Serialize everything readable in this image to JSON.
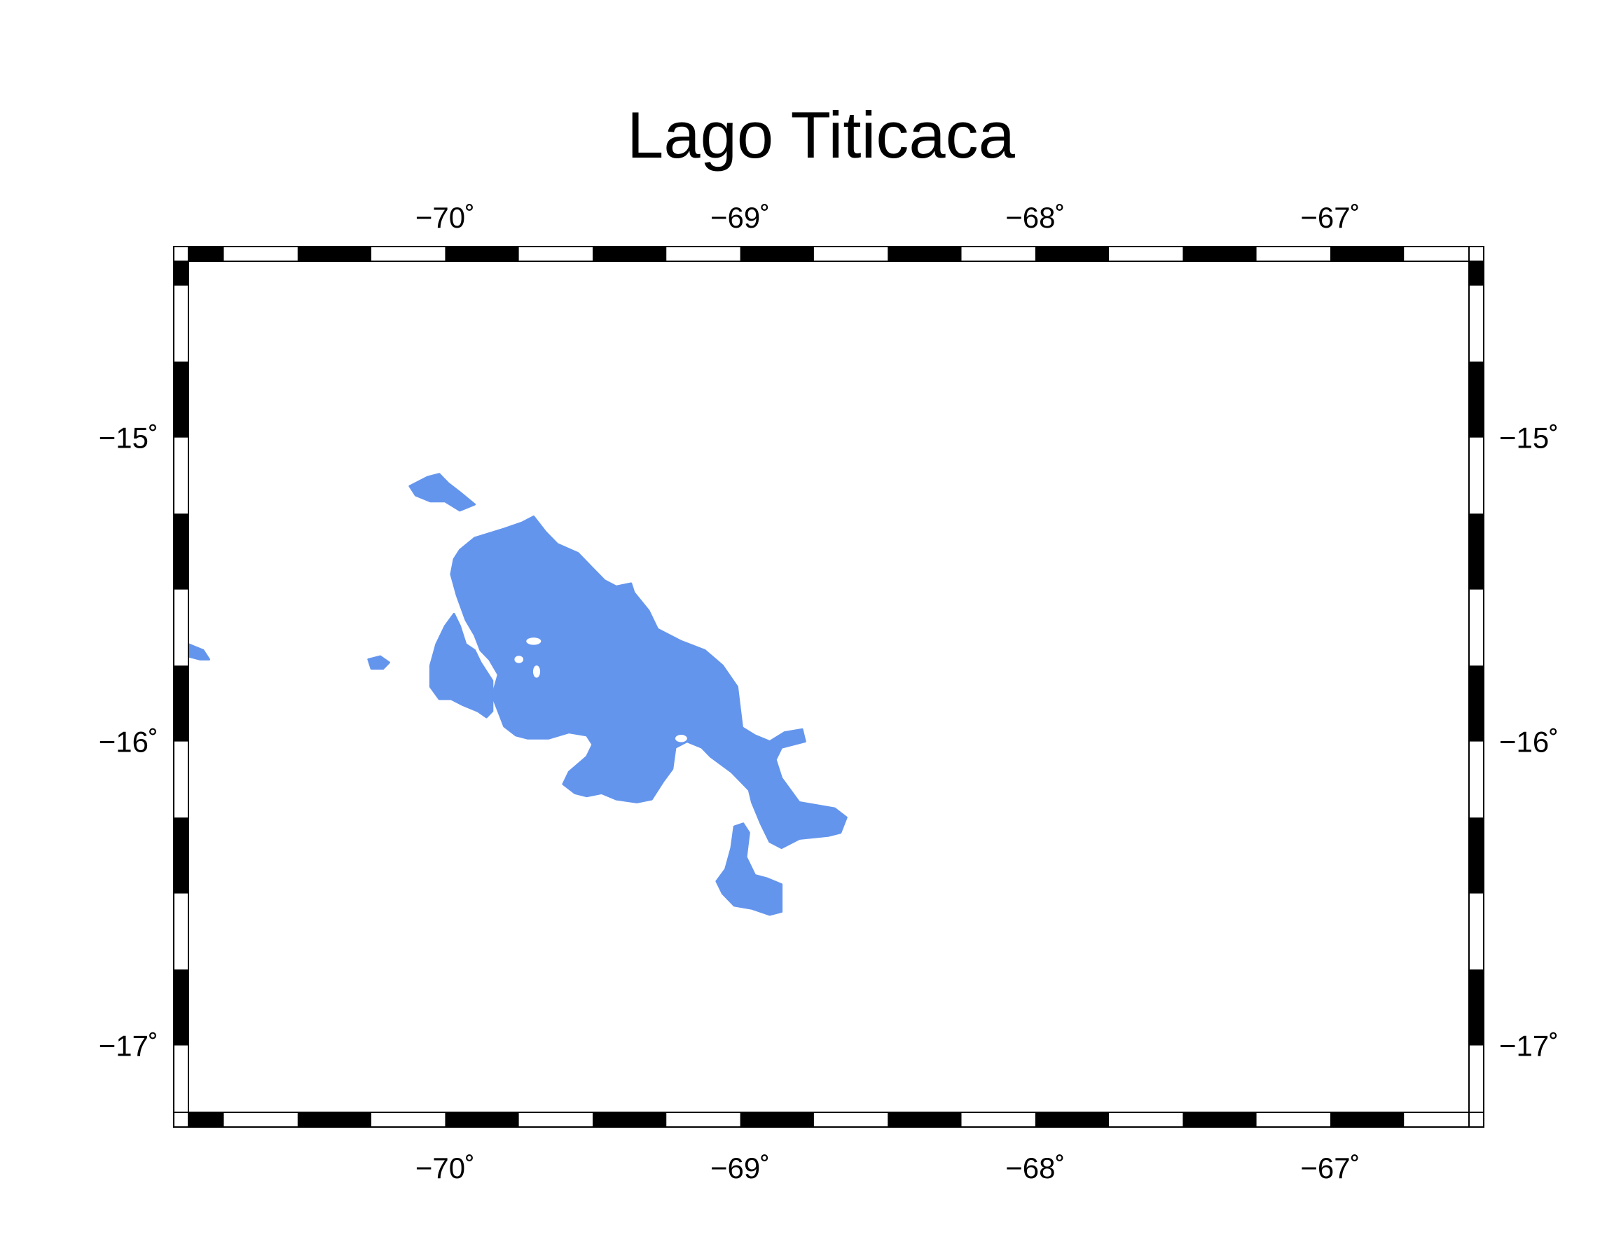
{
  "title": "Lago Titicaca",
  "map": {
    "projection": "linear",
    "frame_style": "fancy-checkered",
    "lon_range": [
      -70.87,
      -66.53
    ],
    "lat_range": [
      -17.22,
      -14.42
    ],
    "lake_color": "#6495ED",
    "frame_color": "#000000",
    "background_color": "#ffffff"
  },
  "axes": {
    "x_ticks": [
      {
        "value": -70,
        "label": "−70˚"
      },
      {
        "value": -69,
        "label": "−69˚"
      },
      {
        "value": -68,
        "label": "−68˚"
      },
      {
        "value": -67,
        "label": "−67˚"
      }
    ],
    "y_ticks": [
      {
        "value": -15,
        "label": "−15˚"
      },
      {
        "value": -16,
        "label": "−16˚"
      },
      {
        "value": -17,
        "label": "−17˚"
      }
    ],
    "checker_step_deg": 0.25
  },
  "features": [
    {
      "name": "lago-mayor",
      "color": "#6495ED",
      "coords": [
        [
          -69.95,
          -15.37
        ],
        [
          -69.9,
          -15.33
        ],
        [
          -69.8,
          -15.3
        ],
        [
          -69.74,
          -15.28
        ],
        [
          -69.7,
          -15.26
        ],
        [
          -69.66,
          -15.31
        ],
        [
          -69.62,
          -15.35
        ],
        [
          -69.55,
          -15.38
        ],
        [
          -69.5,
          -15.43
        ],
        [
          -69.46,
          -15.47
        ],
        [
          -69.42,
          -15.49
        ],
        [
          -69.37,
          -15.48
        ],
        [
          -69.36,
          -15.51
        ],
        [
          -69.31,
          -15.57
        ],
        [
          -69.28,
          -15.63
        ],
        [
          -69.2,
          -15.67
        ],
        [
          -69.12,
          -15.7
        ],
        [
          -69.06,
          -15.75
        ],
        [
          -69.01,
          -15.82
        ],
        [
          -69.0,
          -15.9
        ],
        [
          -68.99,
          -15.98
        ],
        [
          -68.97,
          -16.05
        ],
        [
          -68.93,
          -16.15
        ],
        [
          -68.97,
          -16.16
        ],
        [
          -69.03,
          -16.1
        ],
        [
          -69.1,
          -16.05
        ],
        [
          -69.13,
          -16.02
        ],
        [
          -69.18,
          -16.0
        ],
        [
          -69.22,
          -16.02
        ],
        [
          -69.23,
          -16.09
        ],
        [
          -69.26,
          -16.13
        ],
        [
          -69.3,
          -16.19
        ],
        [
          -69.35,
          -16.2
        ],
        [
          -69.42,
          -16.19
        ],
        [
          -69.47,
          -16.17
        ],
        [
          -69.52,
          -16.18
        ],
        [
          -69.56,
          -16.17
        ],
        [
          -69.6,
          -16.14
        ],
        [
          -69.58,
          -16.1
        ],
        [
          -69.52,
          -16.05
        ],
        [
          -69.5,
          -16.01
        ],
        [
          -69.52,
          -15.98
        ],
        [
          -69.58,
          -15.97
        ],
        [
          -69.65,
          -15.99
        ],
        [
          -69.72,
          -15.99
        ],
        [
          -69.76,
          -15.98
        ],
        [
          -69.8,
          -15.95
        ],
        [
          -69.82,
          -15.9
        ],
        [
          -69.84,
          -15.85
        ],
        [
          -69.82,
          -15.78
        ],
        [
          -69.85,
          -15.73
        ],
        [
          -69.88,
          -15.7
        ],
        [
          -69.9,
          -15.65
        ],
        [
          -69.93,
          -15.6
        ],
        [
          -69.96,
          -15.52
        ],
        [
          -69.98,
          -15.45
        ],
        [
          -69.97,
          -15.4
        ]
      ]
    },
    {
      "name": "puno-bay",
      "color": "#6495ED",
      "coords": [
        [
          -70.0,
          -15.62
        ],
        [
          -70.03,
          -15.68
        ],
        [
          -70.05,
          -15.75
        ],
        [
          -70.05,
          -15.82
        ],
        [
          -70.02,
          -15.86
        ],
        [
          -69.98,
          -15.86
        ],
        [
          -69.94,
          -15.88
        ],
        [
          -69.89,
          -15.9
        ],
        [
          -69.86,
          -15.92
        ],
        [
          -69.84,
          -15.9
        ],
        [
          -69.84,
          -15.8
        ],
        [
          -69.88,
          -15.74
        ],
        [
          -69.9,
          -15.7
        ],
        [
          -69.93,
          -15.68
        ],
        [
          -69.95,
          -15.62
        ],
        [
          -69.97,
          -15.58
        ]
      ]
    },
    {
      "name": "northern-arm",
      "color": "#6495ED",
      "coords": [
        [
          -70.12,
          -15.16
        ],
        [
          -70.06,
          -15.13
        ],
        [
          -70.02,
          -15.12
        ],
        [
          -69.99,
          -15.15
        ],
        [
          -69.95,
          -15.18
        ],
        [
          -69.9,
          -15.22
        ],
        [
          -69.95,
          -15.24
        ],
        [
          -70.0,
          -15.21
        ],
        [
          -70.05,
          -15.21
        ],
        [
          -70.1,
          -15.19
        ]
      ]
    },
    {
      "name": "lago-menor-channel",
      "color": "#6495ED",
      "coords": [
        [
          -69.0,
          -15.95
        ],
        [
          -68.95,
          -15.98
        ],
        [
          -68.9,
          -16.0
        ],
        [
          -68.85,
          -15.97
        ],
        [
          -68.79,
          -15.96
        ],
        [
          -68.78,
          -16.0
        ],
        [
          -68.86,
          -16.02
        ],
        [
          -68.88,
          -16.06
        ],
        [
          -68.86,
          -16.12
        ],
        [
          -68.83,
          -16.16
        ],
        [
          -68.8,
          -16.2
        ],
        [
          -68.74,
          -16.21
        ],
        [
          -68.68,
          -16.22
        ],
        [
          -68.64,
          -16.25
        ],
        [
          -68.66,
          -16.3
        ],
        [
          -68.7,
          -16.31
        ],
        [
          -68.8,
          -16.32
        ],
        [
          -68.86,
          -16.35
        ],
        [
          -68.9,
          -16.33
        ],
        [
          -68.93,
          -16.27
        ],
        [
          -68.96,
          -16.2
        ],
        [
          -68.98,
          -16.12
        ],
        [
          -69.0,
          -16.04
        ]
      ]
    },
    {
      "name": "lago-menor-south",
      "color": "#6495ED",
      "coords": [
        [
          -69.02,
          -16.28
        ],
        [
          -69.03,
          -16.35
        ],
        [
          -69.05,
          -16.42
        ],
        [
          -69.08,
          -16.46
        ],
        [
          -69.06,
          -16.5
        ],
        [
          -69.02,
          -16.54
        ],
        [
          -68.96,
          -16.55
        ],
        [
          -68.9,
          -16.57
        ],
        [
          -68.86,
          -16.56
        ],
        [
          -68.86,
          -16.47
        ],
        [
          -68.91,
          -16.45
        ],
        [
          -68.95,
          -16.44
        ],
        [
          -68.98,
          -16.38
        ],
        [
          -68.97,
          -16.3
        ],
        [
          -68.99,
          -16.27
        ]
      ]
    },
    {
      "name": "lagoon-west",
      "color": "#6495ED",
      "coords": [
        [
          -70.87,
          -15.68
        ],
        [
          -70.82,
          -15.7
        ],
        [
          -70.8,
          -15.73
        ],
        [
          -70.83,
          -15.73
        ],
        [
          -70.87,
          -15.72
        ]
      ]
    },
    {
      "name": "lagoon-small",
      "color": "#6495ED",
      "coords": [
        [
          -70.26,
          -15.73
        ],
        [
          -70.22,
          -15.72
        ],
        [
          -70.19,
          -15.74
        ],
        [
          -70.21,
          -15.76
        ],
        [
          -70.25,
          -15.76
        ]
      ]
    }
  ],
  "islands": [
    {
      "name": "isla-1",
      "center": [
        -69.7,
        -15.67
      ],
      "radius": [
        0.025,
        0.012
      ]
    },
    {
      "name": "isla-2",
      "center": [
        -69.69,
        -15.77
      ],
      "radius": [
        0.012,
        0.02
      ]
    },
    {
      "name": "isla-3",
      "center": [
        -69.75,
        -15.73
      ],
      "radius": [
        0.015,
        0.012
      ]
    },
    {
      "name": "isla-4",
      "center": [
        -69.2,
        -15.99
      ],
      "radius": [
        0.02,
        0.012
      ]
    }
  ]
}
